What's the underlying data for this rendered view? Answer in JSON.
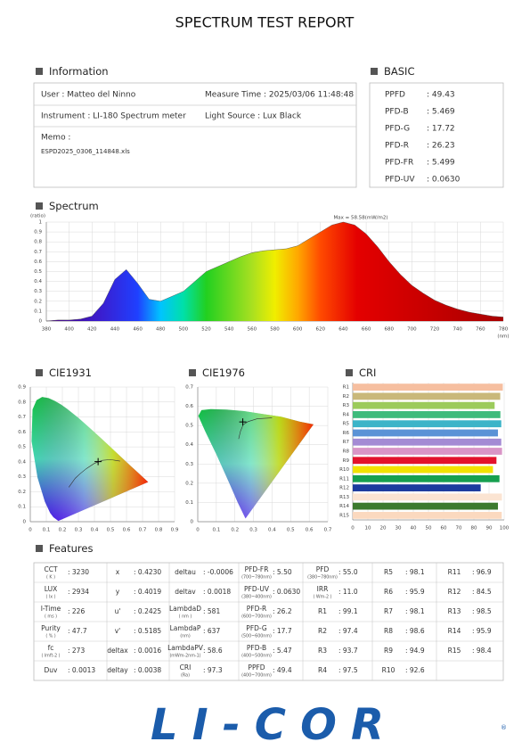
{
  "header": {
    "title": "SPECTRUM TEST REPORT"
  },
  "information": {
    "heading": "Information",
    "user": "User : Matteo del Ninno",
    "measure_time": "Measure Time : 2025/03/06 11:48:48",
    "instrument": "Instrument : LI-180 Spectrum meter",
    "light_source": "Light Source : Lux Black",
    "memo_label": "Memo :",
    "memo": "ESPD2025_0306_114848.xls"
  },
  "basic": {
    "heading": "BASIC",
    "rows": [
      [
        "PPFD",
        ": 49.43"
      ],
      [
        "PFD-B",
        ": 5.469"
      ],
      [
        "PFD-G",
        ": 17.72"
      ],
      [
        "PFD-R",
        ": 26.23"
      ],
      [
        "PFD-FR",
        ": 5.499"
      ],
      [
        "PFD-UV",
        ": 0.0630"
      ]
    ]
  },
  "chart_data": [
    {
      "type": "area",
      "title": "Spectrum",
      "y_label": "(ratio)",
      "x_label": "(nm)",
      "annotation": "Max = 58.58(mW/m2)",
      "x": [
        380,
        390,
        400,
        410,
        420,
        430,
        440,
        450,
        460,
        470,
        480,
        490,
        500,
        510,
        520,
        530,
        540,
        550,
        560,
        570,
        580,
        590,
        600,
        610,
        620,
        630,
        640,
        650,
        660,
        670,
        680,
        690,
        700,
        710,
        720,
        730,
        740,
        750,
        760,
        770,
        780
      ],
      "values": [
        0,
        0.01,
        0.01,
        0.02,
        0.05,
        0.18,
        0.42,
        0.52,
        0.38,
        0.22,
        0.2,
        0.25,
        0.3,
        0.4,
        0.5,
        0.55,
        0.6,
        0.65,
        0.69,
        0.71,
        0.72,
        0.73,
        0.76,
        0.83,
        0.9,
        0.97,
        1,
        0.97,
        0.88,
        0.75,
        0.6,
        0.47,
        0.36,
        0.28,
        0.21,
        0.16,
        0.12,
        0.09,
        0.07,
        0.05,
        0.04
      ],
      "xlim": [
        380,
        780
      ],
      "xticks": [
        380,
        400,
        420,
        440,
        460,
        480,
        500,
        520,
        540,
        560,
        580,
        600,
        620,
        640,
        660,
        680,
        700,
        720,
        740,
        760,
        780
      ],
      "ylim": [
        0,
        1
      ],
      "yticks": [
        0,
        0.1,
        0.2,
        0.3,
        0.4,
        0.5,
        0.6,
        0.7,
        0.8,
        0.9,
        1
      ],
      "grid": true
    },
    {
      "type": "chromaticity",
      "title": "CIE1931",
      "x": [
        0.423
      ],
      "y": [
        0.4019
      ],
      "xlim": [
        0,
        0.9
      ],
      "xticks": [
        0,
        0.1,
        0.2,
        0.3,
        0.4,
        0.5,
        0.6,
        0.7,
        0.8,
        0.9
      ],
      "ylim": [
        0,
        0.9
      ],
      "yticks": [
        0,
        0.1,
        0.2,
        0.3,
        0.4,
        0.5,
        0.6,
        0.7,
        0.8,
        0.9
      ],
      "grid": true
    },
    {
      "type": "chromaticity",
      "title": "CIE1976",
      "x": [
        0.2425
      ],
      "y": [
        0.5185
      ],
      "xlim": [
        0,
        0.7
      ],
      "xticks": [
        0,
        0.1,
        0.2,
        0.3,
        0.4,
        0.5,
        0.6,
        0.7
      ],
      "ylim": [
        0,
        0.7
      ],
      "yticks": [
        0,
        0.1,
        0.2,
        0.3,
        0.4,
        0.5,
        0.6,
        0.7
      ],
      "grid": true
    },
    {
      "type": "bar",
      "title": "CRI",
      "orientation": "horizontal",
      "categories": [
        "R1",
        "R2",
        "R3",
        "R4",
        "R5",
        "R6",
        "R7",
        "R8",
        "R9",
        "R10",
        "R11",
        "R12",
        "R13",
        "R14",
        "R15"
      ],
      "values": [
        99.1,
        97.4,
        93.7,
        97.5,
        98.1,
        95.9,
        98.1,
        98.6,
        94.9,
        92.6,
        96.9,
        84.5,
        98.5,
        95.9,
        98.4
      ],
      "colors": [
        "#f6bfa0",
        "#c9b87a",
        "#9ccb5c",
        "#3fbb7c",
        "#3cb4c8",
        "#5b93d6",
        "#a48bd4",
        "#d995c6",
        "#e3122c",
        "#f2e200",
        "#17a04f",
        "#1b3b9e",
        "#fbe4d2",
        "#3c7a2e",
        "#fbd9bf"
      ],
      "xlim": [
        0,
        100
      ],
      "xticks": [
        0,
        10,
        20,
        30,
        40,
        50,
        60,
        70,
        80,
        90,
        100
      ],
      "grid": true
    }
  ],
  "features": {
    "heading": "Features",
    "rows": [
      [
        {
          "label": "CCT",
          "unit": "( K )",
          "value": ": 3230"
        },
        {
          "label": "x",
          "value": ": 0.4230"
        },
        {
          "label": "deltau",
          "value": ": -0.0006"
        },
        {
          "label": "PFD-FR",
          "unit": "(700~780nm)",
          "value": ": 5.50"
        },
        {
          "label": "PFD",
          "unit": "(380~780nm)",
          "value": ": 55.0"
        },
        {
          "label": "R5",
          "value": ": 98.1"
        },
        {
          "label": "R11",
          "value": ": 96.9"
        }
      ],
      [
        {
          "label": "LUX",
          "unit": "( lx )",
          "value": ": 2934"
        },
        {
          "label": "y",
          "value": ": 0.4019"
        },
        {
          "label": "deltav",
          "value": ": 0.0018"
        },
        {
          "label": "PFD-UV",
          "unit": "(380~400nm)",
          "value": ": 0.0630"
        },
        {
          "label": "IRR",
          "unit": "( Wm-2 )",
          "value": ": 11.0"
        },
        {
          "label": "R6",
          "value": ": 95.9"
        },
        {
          "label": "R12",
          "value": ": 84.5"
        }
      ],
      [
        {
          "label": "I-Time",
          "unit": "( ms )",
          "value": ": 226"
        },
        {
          "label": "u'",
          "value": ": 0.2425"
        },
        {
          "label": "LambdaD",
          "unit": "( nm )",
          "value": ": 581"
        },
        {
          "label": "PFD-R",
          "unit": "(600~700nm)",
          "value": ": 26.2"
        },
        {
          "label": "R1",
          "value": ": 99.1"
        },
        {
          "label": "R7",
          "value": ": 98.1"
        },
        {
          "label": "R13",
          "value": ": 98.5"
        }
      ],
      [
        {
          "label": "Purity",
          "unit": "( % )",
          "value": ": 47.7"
        },
        {
          "label": "v'",
          "value": ": 0.5185"
        },
        {
          "label": "LambdaP",
          "unit": "(nm)",
          "value": ": 637"
        },
        {
          "label": "PFD-G",
          "unit": "(500~600nm)",
          "value": ": 17.7"
        },
        {
          "label": "R2",
          "value": ": 97.4"
        },
        {
          "label": "R8",
          "value": ": 98.6"
        },
        {
          "label": "R14",
          "value": ": 95.9"
        }
      ],
      [
        {
          "label": "fc",
          "unit": "( lmft-2 )",
          "value": ": 273"
        },
        {
          "label": "deltax",
          "value": ": 0.0016"
        },
        {
          "label": "LambdaPV",
          "unit": "(mWm-2nm-1)",
          "value": ": 58.6"
        },
        {
          "label": "PFD-B",
          "unit": "(400~500nm)",
          "value": ": 5.47"
        },
        {
          "label": "R3",
          "value": ": 93.7"
        },
        {
          "label": "R9",
          "value": ": 94.9"
        },
        {
          "label": "R15",
          "value": ": 98.4"
        }
      ],
      [
        {
          "label": "Duv",
          "value": ": 0.0013"
        },
        {
          "label": "deltay",
          "value": ": 0.0038"
        },
        {
          "label": "CRI",
          "unit": "(Ra)",
          "value": ": 97.3"
        },
        {
          "label": "PPFD",
          "unit": "(400~700nm)",
          "value": ": 49.4"
        },
        {
          "label": "R4",
          "value": ": 97.5"
        },
        {
          "label": "R10",
          "value": ": 92.6"
        }
      ]
    ]
  },
  "footer": {
    "logo": "LI-COR",
    "logo_mark": "®"
  }
}
